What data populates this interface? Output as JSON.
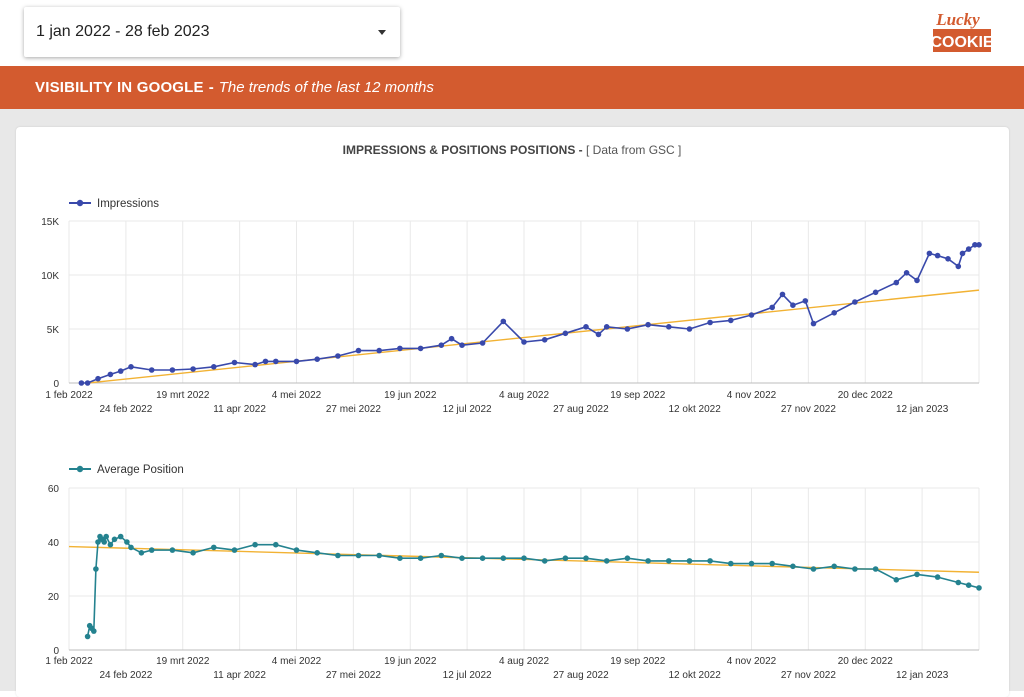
{
  "header": {
    "date_range": "1 jan 2022 - 28 feb 2023",
    "logo_line1": "Lucky",
    "logo_line2": "COOKIE"
  },
  "banner": {
    "title": "VISIBILITY IN GOOGLE",
    "separator": "-",
    "subtitle": "The trends of the last 12 months"
  },
  "card": {
    "title": "IMPRESSIONS & POSITIONS POSITIONS -",
    "subtitle": "[ Data from GSC ]"
  },
  "colors": {
    "banner": "#d35b2f",
    "impressions": "#3949ab",
    "position": "#24828f",
    "trend": "#f2b233"
  },
  "chart_data": [
    {
      "type": "line",
      "series": [
        {
          "name": "Impressions",
          "color": "#3949ab"
        }
      ],
      "x_ticks_row1": [
        "1 feb 2022",
        "19 mrt 2022",
        "4 mei 2022",
        "19 jun 2022",
        "4 aug 2022",
        "19 sep 2022",
        "4 nov 2022",
        "20 dec 2022"
      ],
      "x_ticks_row2": [
        "24 feb 2022",
        "11 apr 2022",
        "27 mei 2022",
        "12 jul 2022",
        "27 aug 2022",
        "12 okt 2022",
        "27 nov 2022",
        "12 jan 2023"
      ],
      "y_ticks": [
        "0",
        "5K",
        "10K",
        "15K"
      ],
      "ylim": [
        0,
        15000
      ],
      "x_days": [
        0,
        6,
        9,
        14,
        20,
        25,
        30,
        40,
        50,
        60,
        70,
        80,
        90,
        95,
        100,
        110,
        120,
        130,
        140,
        150,
        160,
        170,
        180,
        185,
        190,
        200,
        210,
        220,
        230,
        240,
        250,
        256,
        260,
        270,
        280,
        290,
        300,
        310,
        320,
        330,
        340,
        345,
        350,
        356,
        360,
        370,
        380,
        390,
        400,
        405,
        410,
        416,
        420,
        425,
        430,
        432,
        435,
        438,
        440
      ],
      "values": [
        null,
        0,
        0,
        400,
        800,
        1100,
        1500,
        1200,
        1200,
        1300,
        1500,
        1900,
        1700,
        2000,
        2000,
        2000,
        2200,
        2500,
        3000,
        3000,
        3200,
        3200,
        3500,
        4100,
        3500,
        3700,
        5700,
        3800,
        4000,
        4600,
        5200,
        4500,
        5200,
        5000,
        5400,
        5200,
        5000,
        5600,
        5800,
        6300,
        7000,
        8200,
        7200,
        7600,
        5500,
        6500,
        7500,
        8400,
        9300,
        10200,
        9500,
        12000,
        11800,
        11500,
        10800,
        12000,
        12400,
        12800,
        12800
      ],
      "trend": [
        [
          9,
          0
        ],
        [
          440,
          8600
        ]
      ]
    },
    {
      "type": "line",
      "series": [
        {
          "name": "Average Position",
          "color": "#24828f"
        }
      ],
      "x_ticks_row1": [
        "1 feb 2022",
        "19 mrt 2022",
        "4 mei 2022",
        "19 jun 2022",
        "4 aug 2022",
        "19 sep 2022",
        "4 nov 2022",
        "20 dec 2022"
      ],
      "x_ticks_row2": [
        "24 feb 2022",
        "11 apr 2022",
        "27 mei 2022",
        "12 jul 2022",
        "27 aug 2022",
        "12 okt 2022",
        "27 nov 2022",
        "12 jan 2023"
      ],
      "y_ticks": [
        "0",
        "20",
        "40",
        "60"
      ],
      "ylim": [
        0,
        60
      ],
      "x_days": [
        9,
        10,
        11,
        12,
        13,
        14,
        15,
        16,
        17,
        18,
        20,
        22,
        25,
        28,
        30,
        35,
        40,
        50,
        60,
        70,
        80,
        90,
        100,
        110,
        120,
        130,
        140,
        150,
        160,
        170,
        180,
        190,
        200,
        210,
        220,
        230,
        240,
        250,
        260,
        270,
        280,
        290,
        300,
        310,
        320,
        330,
        340,
        350,
        360,
        370,
        380,
        390,
        400,
        410,
        420,
        430,
        435,
        440
      ],
      "values": [
        5,
        9,
        8,
        7,
        30,
        40,
        42,
        41,
        40,
        42,
        39,
        41,
        42,
        40,
        38,
        36,
        37,
        37,
        36,
        38,
        37,
        39,
        39,
        37,
        36,
        35,
        35,
        35,
        34,
        34,
        35,
        34,
        34,
        34,
        34,
        33,
        34,
        34,
        33,
        34,
        33,
        33,
        33,
        33,
        32,
        32,
        32,
        31,
        30,
        31,
        30,
        30,
        26,
        28,
        27,
        25,
        24,
        23
      ],
      "trend": [
        [
          0,
          38.3
        ],
        [
          440,
          28.8
        ]
      ]
    }
  ]
}
